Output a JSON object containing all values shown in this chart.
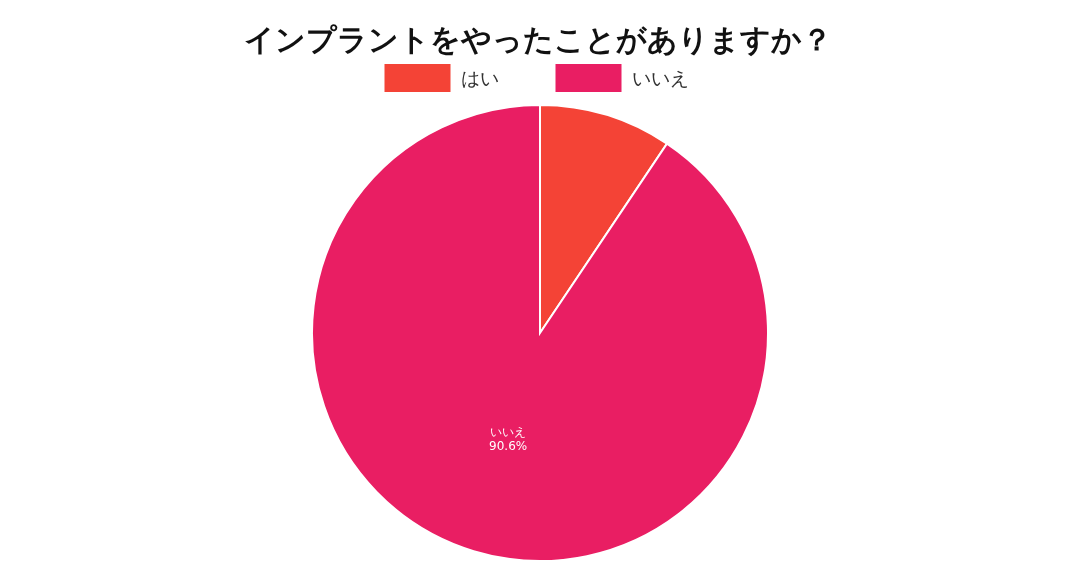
{
  "chart_data": {
    "type": "pie",
    "title": "インプラントをやったことがありますか？",
    "categories": [
      "はい",
      "いいえ"
    ],
    "values": [
      9.4,
      90.6
    ],
    "colors": [
      "#f44336",
      "#e91e63"
    ],
    "value_labels": [
      null,
      "90.6%"
    ],
    "legend": "top"
  }
}
